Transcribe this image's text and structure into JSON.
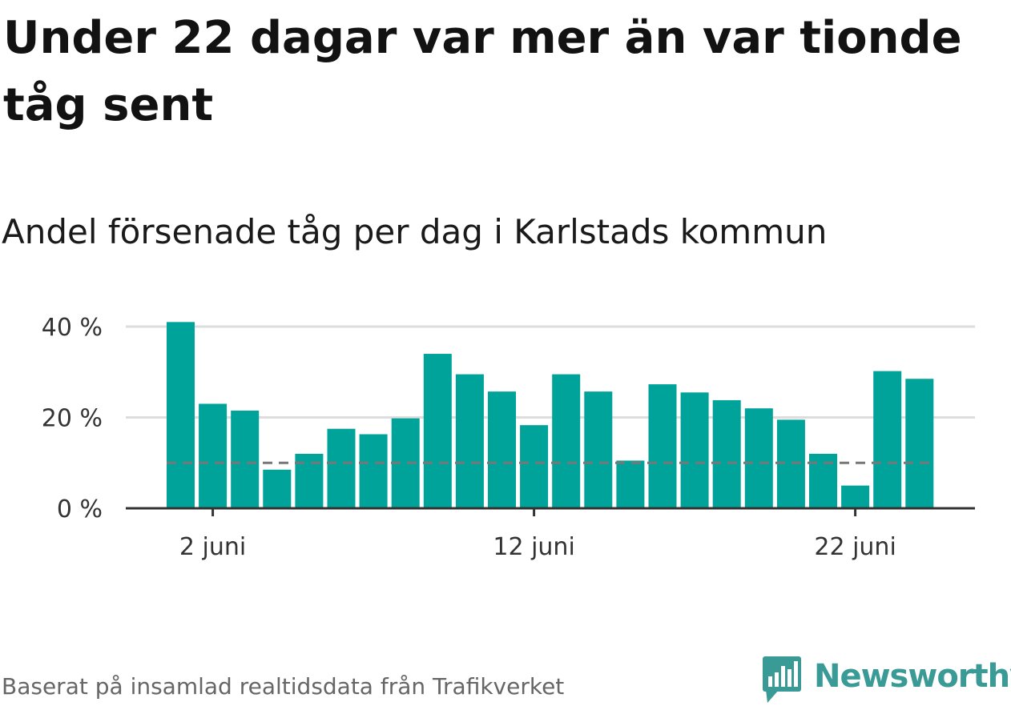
{
  "title": "Under 22 dagar var mer än var tionde tåg sent",
  "subtitle": "Andel försenade tåg per dag i Karlstads kommun",
  "source": "Baserat på insamlad realtidsdata från Trafikverket",
  "logo": {
    "text": "Newsworthy",
    "icon": "bar-chart-speech-bubble-icon",
    "color": "#3a9a96"
  },
  "colors": {
    "bar": "#00a39a",
    "reference_line": "#777777",
    "grid": "#dddddd",
    "axis": "#333333"
  },
  "chart_data": {
    "type": "bar",
    "x_unit": "day of June",
    "x": [
      1,
      2,
      3,
      4,
      5,
      6,
      7,
      8,
      9,
      10,
      11,
      12,
      13,
      14,
      15,
      16,
      17,
      18,
      19,
      20,
      21,
      22,
      23,
      24
    ],
    "values": [
      41,
      23,
      21.5,
      8.5,
      12,
      17.5,
      16.3,
      19.8,
      34,
      29.5,
      25.7,
      18.3,
      29.5,
      25.7,
      10.5,
      27.3,
      25.5,
      23.8,
      22,
      19.5,
      12,
      5,
      30.2,
      28.5
    ],
    "x_ticks": [
      {
        "x": 2,
        "label": "2 juni"
      },
      {
        "x": 12,
        "label": "12 juni"
      },
      {
        "x": 22,
        "label": "22 juni"
      }
    ],
    "y_ticks": [
      {
        "value": 0,
        "label": "0 %"
      },
      {
        "value": 20,
        "label": "20 %"
      },
      {
        "value": 40,
        "label": "40 %"
      }
    ],
    "ylim": [
      0,
      40
    ],
    "reference_line": 10,
    "grid": true,
    "xlabel": "",
    "ylabel": ""
  }
}
